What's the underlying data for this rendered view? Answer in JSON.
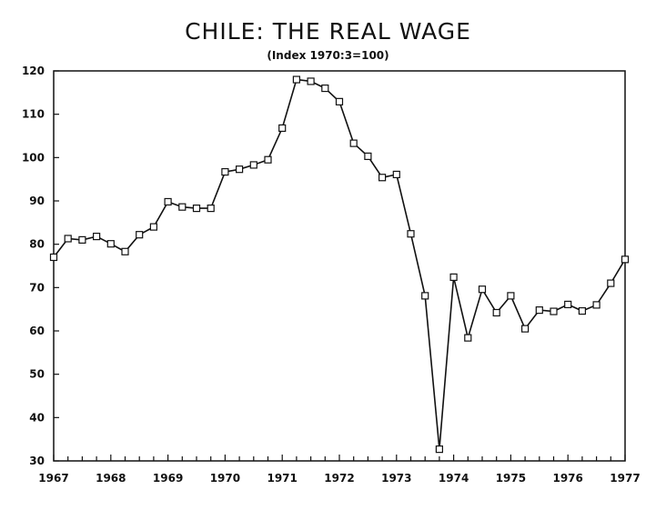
{
  "chart_data": {
    "type": "line",
    "title": "CHILE: THE REAL WAGE",
    "subtitle": "(Index 1970:3=100)",
    "xlabel": "",
    "ylabel": "",
    "xlim": [
      1967,
      1977
    ],
    "ylim": [
      30,
      120
    ],
    "x_ticks": [
      "1967",
      "1968",
      "1969",
      "1970",
      "1971",
      "1972",
      "1973",
      "1974",
      "1975",
      "1976",
      "1977"
    ],
    "y_ticks": [
      "30",
      "40",
      "50",
      "60",
      "70",
      "80",
      "90",
      "100",
      "110",
      "120"
    ],
    "grid": false,
    "marker": "square",
    "series": [
      {
        "x": [
          1967.0,
          1967.25,
          1967.5,
          1967.75,
          1968.0,
          1968.25,
          1968.5,
          1968.75,
          1969.0,
          1969.25,
          1969.5,
          1969.75,
          1970.0,
          1970.25,
          1970.5,
          1970.75,
          1971.0,
          1971.25,
          1971.5,
          1971.75,
          1972.0,
          1972.25,
          1972.5,
          1972.75,
          1973.0,
          1973.25,
          1973.5,
          1973.75,
          1974.0,
          1974.25,
          1974.5,
          1974.75,
          1975.0,
          1975.25,
          1975.5,
          1975.75,
          1976.0,
          1976.25,
          1976.5,
          1976.75,
          1977.0
        ],
        "values": [
          77,
          81.3,
          81,
          81.8,
          80.1,
          78.3,
          82.2,
          84,
          89.8,
          88.6,
          88.3,
          88.3,
          96.7,
          97.3,
          98.3,
          99.5,
          106.8,
          118,
          117.6,
          116,
          112.9,
          103.3,
          100.3,
          95.4,
          96.1,
          82.4,
          68.1,
          32.7,
          72.4,
          58.4,
          69.6,
          64.2,
          68.1,
          60.5,
          64.8,
          64.5,
          66.1,
          64.6,
          66,
          71,
          76.5
        ]
      }
    ],
    "colors": {
      "line": "#111111",
      "axis": "#111111"
    }
  }
}
